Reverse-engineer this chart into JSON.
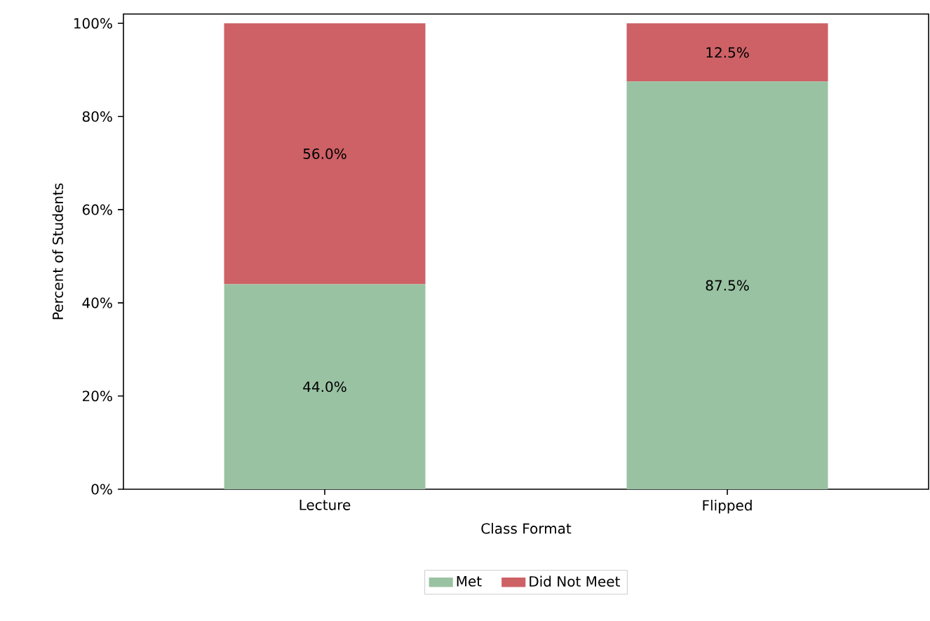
{
  "chart_data": {
    "type": "bar",
    "stacked": true,
    "xlabel": "Class Format",
    "ylabel": "Percent of Students",
    "categories": [
      "Lecture",
      "Flipped"
    ],
    "series": [
      {
        "name": "Met",
        "color": "#99c2a2",
        "values": [
          44.0,
          87.5
        ],
        "value_labels": [
          "44.0%",
          "87.5%"
        ]
      },
      {
        "name": "Did Not Meet",
        "color": "#cd6166",
        "values": [
          56.0,
          12.5
        ],
        "value_labels": [
          "56.0%",
          "12.5%"
        ]
      }
    ],
    "ylim": [
      0,
      102
    ],
    "yticks": [
      {
        "value": 0,
        "label": "0%"
      },
      {
        "value": 20,
        "label": "20%"
      },
      {
        "value": 40,
        "label": "40%"
      },
      {
        "value": 60,
        "label": "60%"
      },
      {
        "value": 80,
        "label": "80%"
      },
      {
        "value": 100,
        "label": "100%"
      }
    ],
    "legend": "bottom"
  }
}
